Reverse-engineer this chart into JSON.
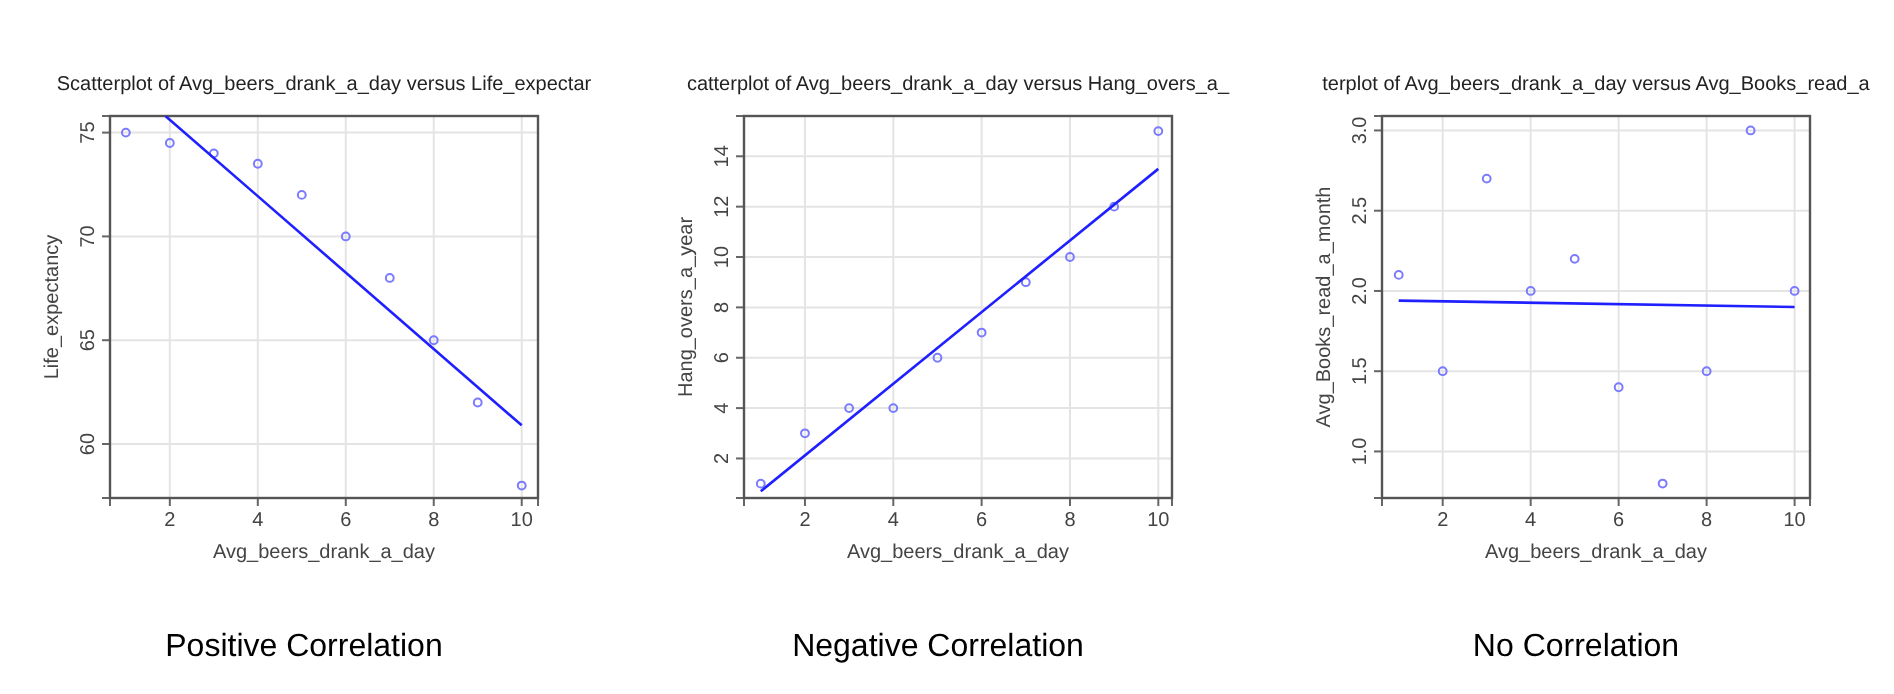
{
  "chart_data": [
    {
      "type": "scatter",
      "title": "Scatterplot of Avg_beers_drank_a_day versus Life_expectar",
      "xlabel": "Avg_beers_drank_a_day",
      "ylabel": "Life_expectancy",
      "x": [
        1,
        2,
        3,
        4,
        5,
        6,
        7,
        8,
        9,
        10
      ],
      "xlim": [
        0.64,
        10.37
      ],
      "ylim": [
        57.4,
        75.8
      ],
      "xticks": [
        2,
        4,
        6,
        8,
        10
      ],
      "yticks": [
        60,
        65,
        70,
        75
      ],
      "grid": true,
      "annotations": [
        "Positive Correlation"
      ],
      "series": [
        {
          "color": "#7b7bff",
          "marker": "circle",
          "values": [
            75,
            74.5,
            74,
            73.5,
            72,
            70,
            68,
            65,
            62,
            58
          ]
        },
        {
          "type": "line",
          "color": "#2020ff",
          "marker": "none",
          "line_style": "solid",
          "x": [
            1.9,
            10
          ],
          "values": [
            75.8,
            60.9
          ]
        }
      ]
    },
    {
      "type": "scatter",
      "title": "catterplot of Avg_beers_drank_a_day versus Hang_overs_a_",
      "xlabel": "Avg_beers_drank_a_day",
      "ylabel": "Hang_overs_a_year",
      "x": [
        1,
        2,
        3,
        4,
        5,
        6,
        7,
        8,
        9,
        10
      ],
      "xlim": [
        0.62,
        10.31
      ],
      "ylim": [
        0.43,
        15.6
      ],
      "xticks": [
        2,
        4,
        6,
        8,
        10
      ],
      "yticks": [
        2,
        4,
        6,
        8,
        10,
        12,
        14
      ],
      "grid": true,
      "annotations": [
        "Negative Correlation"
      ],
      "series": [
        {
          "color": "#7b7bff",
          "marker": "circle",
          "values": [
            1,
            3,
            4,
            4,
            6,
            7,
            9,
            10,
            12,
            15
          ]
        },
        {
          "type": "line",
          "color": "#2020ff",
          "marker": "none",
          "line_style": "solid",
          "x": [
            1,
            10
          ],
          "values": [
            0.7,
            13.5
          ]
        }
      ]
    },
    {
      "type": "scatter",
      "title": "terplot of Avg_beers_drank_a_day versus Avg_Books_read_a",
      "xlabel": "Avg_beers_drank_a_day",
      "ylabel": "Avg_Books_read_a_month",
      "x": [
        1,
        2,
        3,
        4,
        5,
        6,
        7,
        8,
        9,
        10
      ],
      "xlim": [
        0.62,
        10.35
      ],
      "ylim": [
        0.71,
        3.09
      ],
      "xticks": [
        2,
        4,
        6,
        8,
        10
      ],
      "yticks": [
        {
          "value": 1,
          "label": "1.0"
        },
        1.5,
        {
          "value": 2,
          "label": "2.0"
        },
        2.5,
        {
          "value": 3,
          "label": "3.0"
        }
      ],
      "grid": true,
      "annotations": [
        "No Correlation"
      ],
      "series": [
        {
          "color": "#7b7bff",
          "marker": "circle",
          "values": [
            2.1,
            1.5,
            2.7,
            2.0,
            2.2,
            1.4,
            0.8,
            1.5,
            3.0,
            2.0
          ]
        },
        {
          "type": "line",
          "color": "#2020ff",
          "marker": "none",
          "line_style": "solid",
          "x": [
            1,
            10
          ],
          "values": [
            1.94,
            1.9
          ]
        }
      ]
    }
  ]
}
